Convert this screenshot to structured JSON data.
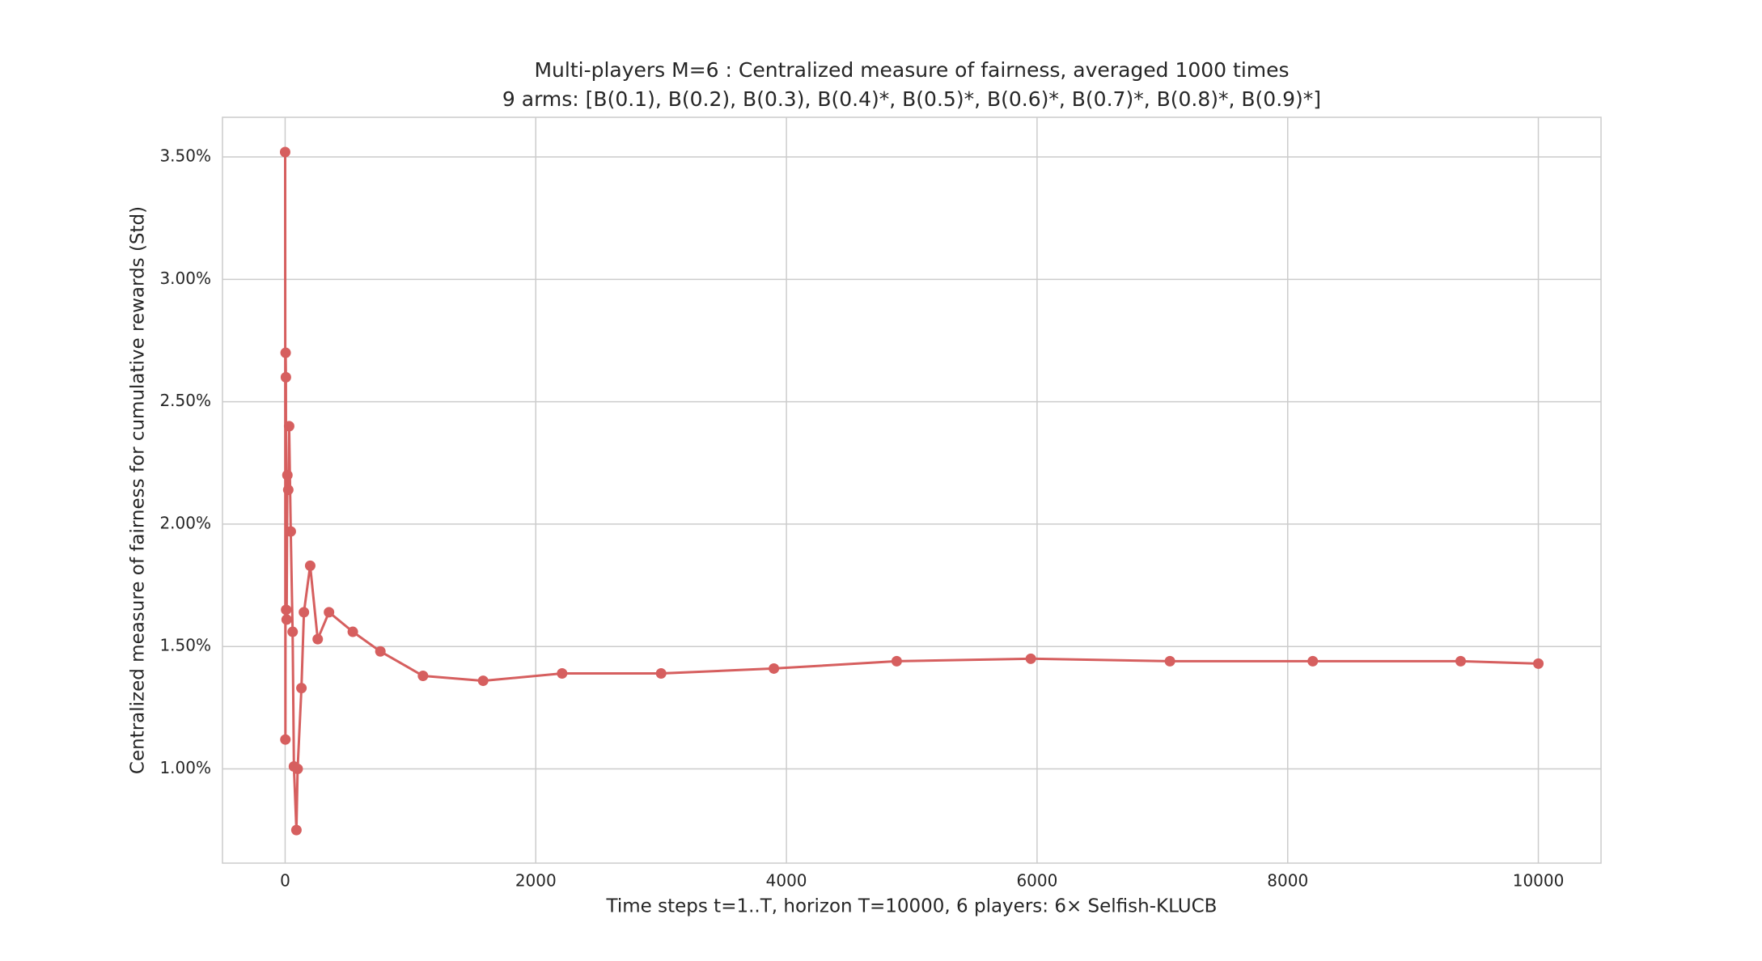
{
  "chart_data": {
    "type": "line",
    "title": "Multi-players M=6 : Centralized measure of fairness, averaged 1000 times",
    "subtitle": "9 arms: [B(0.1), B(0.2), B(0.3), B(0.4)*, B(0.5)*, B(0.6)*, B(0.7)*, B(0.8)*, B(0.9)*]",
    "x_label": "Time steps t=1..T, horizon T=10000, 6 players: 6× Selfish-KLUCB",
    "y_label": "Centralized measure of fairness for cumulative rewards (Std)",
    "x": [
      0,
      2,
      4,
      6,
      8,
      12,
      18,
      25,
      32,
      45,
      60,
      70,
      90,
      100,
      130,
      150,
      200,
      260,
      350,
      540,
      760,
      1100,
      1580,
      2210,
      3000,
      3900,
      4880,
      5950,
      7060,
      8200,
      9380,
      10000
    ],
    "series": [
      {
        "color": "#d65f5f",
        "values": [
          3.52,
          1.12,
          2.7,
          2.6,
          1.65,
          1.61,
          2.2,
          2.14,
          2.4,
          1.97,
          1.56,
          1.01,
          0.75,
          1.0,
          1.33,
          1.64,
          1.83,
          1.53,
          1.64,
          1.56,
          1.48,
          1.38,
          1.36,
          1.39,
          1.39,
          1.41,
          1.44,
          1.45,
          1.44,
          1.44,
          1.44,
          1.43
        ]
      }
    ],
    "xlim": [
      -500,
      10500
    ],
    "xticks": [
      0,
      2000,
      4000,
      6000,
      8000,
      10000
    ],
    "ylim": [
      0.615,
      3.662
    ],
    "yticks": [
      {
        "value": 1.0,
        "label": "1.00%"
      },
      {
        "value": 1.5,
        "label": "1.50%"
      },
      {
        "value": 2.0,
        "label": "2.00%"
      },
      {
        "value": 2.5,
        "label": "2.50%"
      },
      {
        "value": 3.0,
        "label": "3.00%"
      },
      {
        "value": 3.5,
        "label": "3.50%"
      }
    ],
    "grid": true,
    "markers": true
  }
}
